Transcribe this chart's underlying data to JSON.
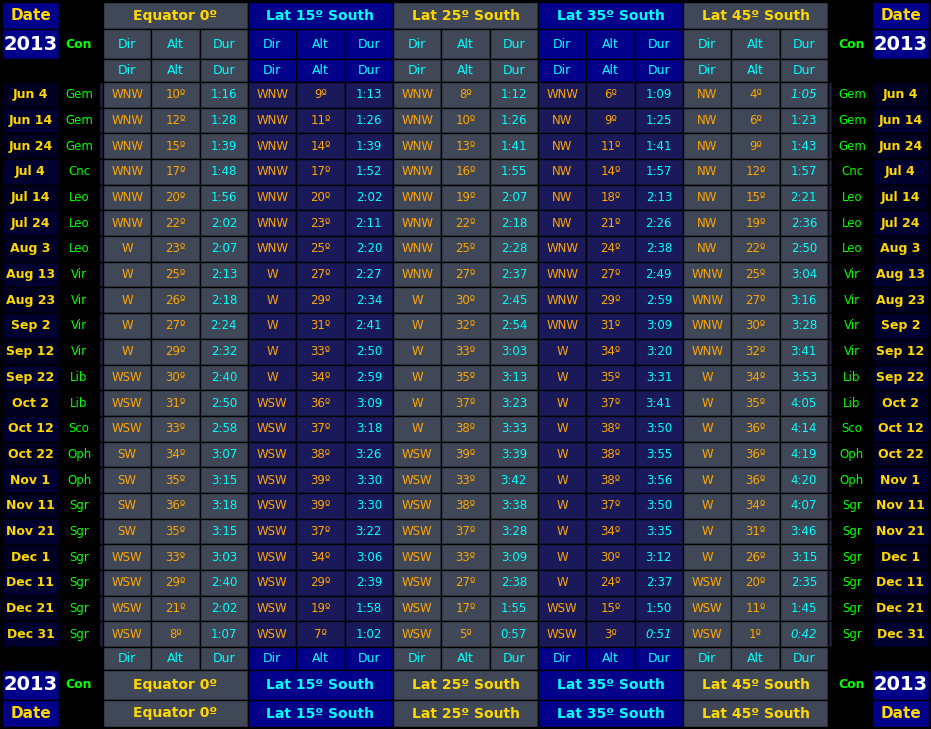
{
  "rows": [
    [
      "Jun 4",
      "Gem",
      "WNW",
      "10º",
      "1:16",
      "WNW",
      "9º",
      "1:13",
      "WNW",
      "8º",
      "1:12",
      "WNW",
      "6º",
      "1:09",
      "NW",
      "4º",
      "1:05"
    ],
    [
      "Jun 14",
      "Gem",
      "WNW",
      "12º",
      "1:28",
      "WNW",
      "11º",
      "1:26",
      "WNW",
      "10º",
      "1:26",
      "NW",
      "9º",
      "1:25",
      "NW",
      "6º",
      "1:23"
    ],
    [
      "Jun 24",
      "Gem",
      "WNW",
      "15º",
      "1:39",
      "WNW",
      "14º",
      "1:39",
      "WNW",
      "13º",
      "1:41",
      "NW",
      "11º",
      "1:41",
      "NW",
      "9º",
      "1:43"
    ],
    [
      "Jul 4",
      "Cnc",
      "WNW",
      "17º",
      "1:48",
      "WNW",
      "17º",
      "1:52",
      "WNW",
      "16º",
      "1:55",
      "NW",
      "14º",
      "1:57",
      "NW",
      "12º",
      "1:57"
    ],
    [
      "Jul 14",
      "Leo",
      "WNW",
      "20º",
      "1:56",
      "WNW",
      "20º",
      "2:02",
      "WNW",
      "19º",
      "2:07",
      "NW",
      "18º",
      "2:13",
      "NW",
      "15º",
      "2:21"
    ],
    [
      "Jul 24",
      "Leo",
      "WNW",
      "22º",
      "2:02",
      "WNW",
      "23º",
      "2:11",
      "WNW",
      "22º",
      "2:18",
      "NW",
      "21º",
      "2:26",
      "NW",
      "19º",
      "2:36"
    ],
    [
      "Aug 3",
      "Leo",
      "W",
      "23º",
      "2:07",
      "WNW",
      "25º",
      "2:20",
      "WNW",
      "25º",
      "2:28",
      "WNW",
      "24º",
      "2:38",
      "NW",
      "22º",
      "2:50"
    ],
    [
      "Aug 13",
      "Vir",
      "W",
      "25º",
      "2:13",
      "W",
      "27º",
      "2:27",
      "WNW",
      "27º",
      "2:37",
      "WNW",
      "27º",
      "2:49",
      "WNW",
      "25º",
      "3:04"
    ],
    [
      "Aug 23",
      "Vir",
      "W",
      "26º",
      "2:18",
      "W",
      "29º",
      "2:34",
      "W",
      "30º",
      "2:45",
      "WNW",
      "29º",
      "2:59",
      "WNW",
      "27º",
      "3:16"
    ],
    [
      "Sep 2",
      "Vir",
      "W",
      "27º",
      "2:24",
      "W",
      "31º",
      "2:41",
      "W",
      "32º",
      "2:54",
      "WNW",
      "31º",
      "3:09",
      "WNW",
      "30º",
      "3:28"
    ],
    [
      "Sep 12",
      "Vir",
      "W",
      "29º",
      "2:32",
      "W",
      "33º",
      "2:50",
      "W",
      "33º",
      "3:03",
      "W",
      "34º",
      "3:20",
      "WNW",
      "32º",
      "3:41"
    ],
    [
      "Sep 22",
      "Lib",
      "WSW",
      "30º",
      "2:40",
      "W",
      "34º",
      "2:59",
      "W",
      "35º",
      "3:13",
      "W",
      "35º",
      "3:31",
      "W",
      "34º",
      "3:53"
    ],
    [
      "Oct 2",
      "Lib",
      "WSW",
      "31º",
      "2:50",
      "WSW",
      "36º",
      "3:09",
      "W",
      "37º",
      "3:23",
      "W",
      "37º",
      "3:41",
      "W",
      "35º",
      "4:05"
    ],
    [
      "Oct 12",
      "Sco",
      "WSW",
      "33º",
      "2:58",
      "WSW",
      "37º",
      "3:18",
      "W",
      "38º",
      "3:33",
      "W",
      "38º",
      "3:50",
      "W",
      "36º",
      "4:14"
    ],
    [
      "Oct 22",
      "Oph",
      "SW",
      "34º",
      "3:07",
      "WSW",
      "38º",
      "3:26",
      "WSW",
      "39º",
      "3:39",
      "W",
      "38º",
      "3:55",
      "W",
      "36º",
      "4:19"
    ],
    [
      "Nov 1",
      "Oph",
      "SW",
      "35º",
      "3:15",
      "WSW",
      "39º",
      "3:30",
      "WSW",
      "33º",
      "3:42",
      "W",
      "38º",
      "3:56",
      "W",
      "36º",
      "4:20"
    ],
    [
      "Nov 11",
      "Sgr",
      "SW",
      "36º",
      "3:18",
      "WSW",
      "39º",
      "3:30",
      "WSW",
      "38º",
      "3:38",
      "W",
      "37º",
      "3:50",
      "W",
      "34º",
      "4:07"
    ],
    [
      "Nov 21",
      "Sgr",
      "SW",
      "35º",
      "3:15",
      "WSW",
      "37º",
      "3:22",
      "WSW",
      "37º",
      "3:28",
      "W",
      "34º",
      "3:35",
      "W",
      "31º",
      "3:46"
    ],
    [
      "Dec 1",
      "Sgr",
      "WSW",
      "33º",
      "3:03",
      "WSW",
      "34º",
      "3:06",
      "WSW",
      "33º",
      "3:09",
      "W",
      "30º",
      "3:12",
      "W",
      "26º",
      "3:15"
    ],
    [
      "Dec 11",
      "Sgr",
      "WSW",
      "29º",
      "2:40",
      "WSW",
      "29º",
      "2:39",
      "WSW",
      "27º",
      "2:38",
      "W",
      "24º",
      "2:37",
      "WSW",
      "20º",
      "2:35"
    ],
    [
      "Dec 21",
      "Sgr",
      "WSW",
      "21º",
      "2:02",
      "WSW",
      "19º",
      "1:58",
      "WSW",
      "17º",
      "1:55",
      "WSW",
      "15º",
      "1:50",
      "WSW",
      "11º",
      "1:45"
    ],
    [
      "Dec 31",
      "Sgr",
      "WSW",
      "8º",
      "1:07",
      "WSW",
      "7º",
      "1:02",
      "WSW",
      "5º",
      "0:57",
      "WSW",
      "3º",
      "0:51",
      "WSW",
      "1º",
      "0:42"
    ]
  ],
  "italic_entries": {
    "Jun 4": [
      14
    ],
    "Dec 31": [
      14,
      11
    ]
  },
  "col_widths": {
    "date": 57,
    "con": 42,
    "sep": 5,
    "sub": 38
  },
  "row_heights": {
    "header_date": 27,
    "header_year": 30,
    "subheader": 24,
    "data": 25,
    "footer_year": 30,
    "footer_date": 27
  },
  "bg": {
    "black": "#000000",
    "date_blue": "#00008B",
    "year_blue": "#000066",
    "gray": "#404858",
    "blue_stripe": "#000099",
    "row_black": "#000000",
    "row_dark": "#050510",
    "divider": "#333355"
  },
  "colors": {
    "date_text": "#FFD700",
    "year_text": "#FFFFFF",
    "con_text": "#00FF00",
    "subheader_text": "#00FFFF",
    "group_title_yellow": "#FFD700",
    "group_title_cyan": "#00FFFF",
    "dir_text": "#FFA500",
    "alt_text": "#FFA500",
    "dur_text": "#00FFFF",
    "border": "#000000"
  },
  "group_headers": [
    "Equator 0º",
    "Lat 15º South",
    "Lat 25º South",
    "Lat 35º South",
    "Lat 45º South"
  ],
  "group_title_colors": [
    "#FFD700",
    "#00FFFF",
    "#FFD700",
    "#00FFFF",
    "#FFD700"
  ],
  "group_header_bgs": [
    "#404858",
    "#00008B",
    "#404858",
    "#00008B",
    "#404858"
  ],
  "group_subheader_bgs": [
    "#404858",
    "#00008B",
    "#404858",
    "#00008B",
    "#404858"
  ],
  "group_data_bgs": [
    "#404858",
    "#1a1a5a",
    "#404858",
    "#1a1a5a",
    "#404858"
  ]
}
